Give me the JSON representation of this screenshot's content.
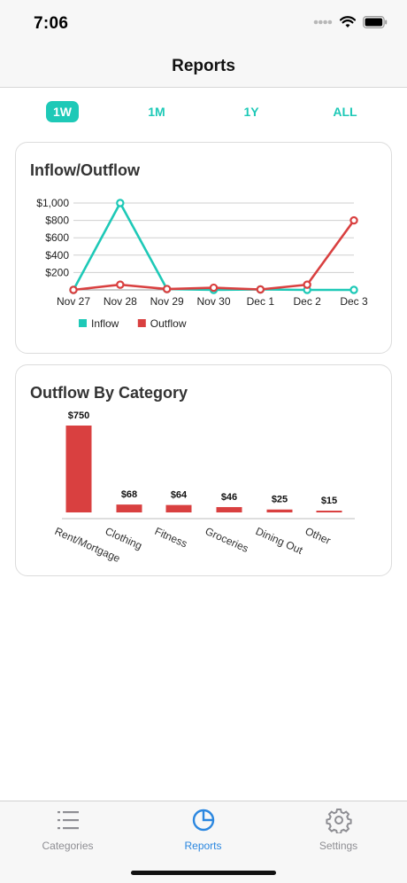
{
  "status_bar": {
    "time": "7:06"
  },
  "header": {
    "title": "Reports"
  },
  "range": {
    "options": [
      {
        "label": "1W",
        "active": true
      },
      {
        "label": "1M",
        "active": false
      },
      {
        "label": "1Y",
        "active": false
      },
      {
        "label": "ALL",
        "active": false
      }
    ]
  },
  "colors": {
    "accent": "#1ec9b7",
    "inflow": "#1ec9b7",
    "outflow": "#d94040",
    "tab_active": "#2b87e0",
    "tab_inactive": "#8e8e93"
  },
  "inflow_outflow_card": {
    "title": "Inflow/Outflow"
  },
  "category_card": {
    "title": "Outflow By Category"
  },
  "chart_data": [
    {
      "type": "line",
      "title": "Inflow/Outflow",
      "x": [
        "Nov 27",
        "Nov 28",
        "Nov 29",
        "Nov 30",
        "Dec 1",
        "Dec 2",
        "Dec 3"
      ],
      "y_ticks": [
        "$200",
        "$400",
        "$600",
        "$800",
        "$1,000"
      ],
      "ylim": [
        0,
        1000
      ],
      "grid": true,
      "legend_position": "bottom-left",
      "series": [
        {
          "name": "Inflow",
          "color": "#1ec9b7",
          "values": [
            0,
            1000,
            10,
            0,
            5,
            0,
            0
          ]
        },
        {
          "name": "Outflow",
          "color": "#d94040",
          "values": [
            0,
            60,
            10,
            25,
            5,
            60,
            800
          ]
        }
      ]
    },
    {
      "type": "bar",
      "title": "Outflow By Category",
      "categories": [
        "Rent/Mortgage",
        "Clothing",
        "Fitness",
        "Groceries",
        "Dining Out",
        "Other"
      ],
      "values": [
        750,
        68,
        64,
        46,
        25,
        15
      ],
      "labels": [
        "$750",
        "$68",
        "$64",
        "$46",
        "$25",
        "$15"
      ],
      "color": "#d94040",
      "ylim": [
        0,
        750
      ]
    }
  ],
  "tabs": [
    {
      "label": "Categories",
      "icon": "list-icon",
      "active": false
    },
    {
      "label": "Reports",
      "icon": "pie-chart-icon",
      "active": true
    },
    {
      "label": "Settings",
      "icon": "gear-icon",
      "active": false
    }
  ]
}
